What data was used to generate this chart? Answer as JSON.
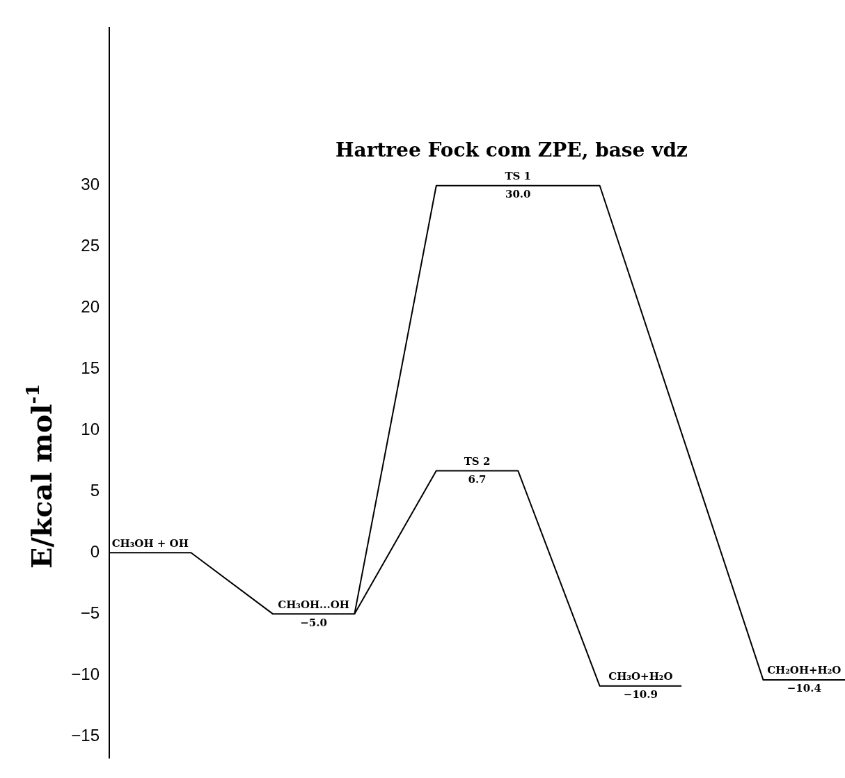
{
  "chart_data": {
    "type": "line",
    "title": "Hartree Fock com ZPE, base vdz",
    "ylabel": "E/kcal mol$^{-1}$",
    "categories": [
      null,
      null,
      null,
      null,
      null,
      null,
      null,
      null,
      null,
      null
    ],
    "ylim": [
      -16.8,
      42.9
    ],
    "yticks": [
      {
        "value": -15,
        "label": "−15"
      },
      {
        "value": -10,
        "label": "−10"
      },
      {
        "value": -5,
        "label": "−5"
      },
      0,
      5,
      10,
      15,
      20,
      25,
      30
    ],
    "tick_labels": "y",
    "marker": "none",
    "series": [
      {
        "color": "#000000",
        "values": [
          0,
          0,
          -5,
          -5,
          30,
          null,
          30,
          null,
          -10.4,
          -10.4
        ]
      },
      {
        "color": "#000000",
        "values": [
          null,
          null,
          null,
          -5,
          6.7,
          6.7,
          -10.9,
          -10.9,
          null,
          null
        ]
      }
    ],
    "annotations": [
      "CH₃OH + OH",
      "CH₃OH...OH",
      "−5.0",
      "TS 1",
      "30.0",
      "TS 2",
      "6.7",
      "CH₃O+H₂O",
      "−10.9",
      "CH₂OH+H₂O",
      "−10.4"
    ]
  }
}
